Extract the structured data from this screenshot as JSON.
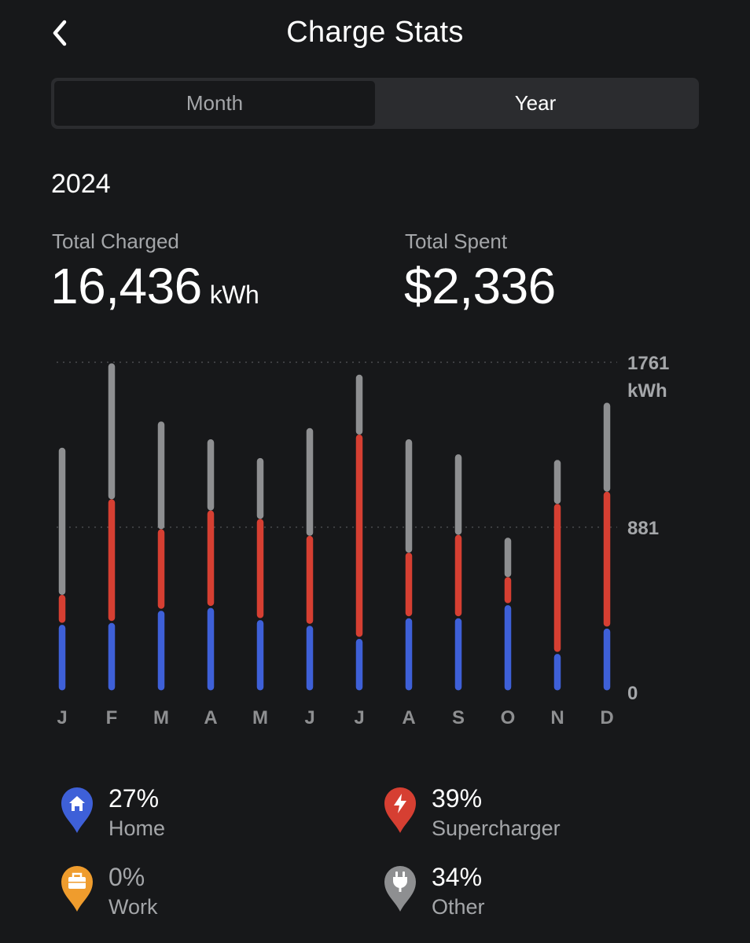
{
  "header": {
    "title": "Charge Stats",
    "back_icon": "chevron-left-icon"
  },
  "tabs": [
    {
      "label": "Month",
      "selected": false
    },
    {
      "label": "Year",
      "selected": true
    }
  ],
  "period": "2024",
  "stats": {
    "charged_label": "Total Charged",
    "charged_value": "16,436",
    "charged_unit": "kWh",
    "spent_label": "Total Spent",
    "spent_value": "$2,336"
  },
  "chart_data": {
    "type": "bar",
    "stacked": true,
    "categories": [
      "J",
      "F",
      "M",
      "A",
      "M",
      "J",
      "J",
      "A",
      "S",
      "O",
      "N",
      "D"
    ],
    "series": [
      {
        "name": "Home",
        "color": "#3e60d8",
        "values": [
          360,
          370,
          435,
          450,
          385,
          355,
          285,
          395,
          395,
          465,
          205,
          340
        ]
      },
      {
        "name": "Supercharger",
        "color": "#d63f32",
        "values": [
          160,
          660,
          435,
          520,
          540,
          480,
          1090,
          350,
          445,
          150,
          800,
          730
        ]
      },
      {
        "name": "Other",
        "color": "#8e8f91",
        "values": [
          785,
          725,
          575,
          380,
          325,
          575,
          320,
          605,
          430,
          210,
          235,
          475
        ]
      }
    ],
    "ylim": [
      0,
      1761
    ],
    "yticks": [
      {
        "value": 1761,
        "label": "1761",
        "unit": "kWh"
      },
      {
        "value": 881,
        "label": "881",
        "unit": ""
      },
      {
        "value": 0,
        "label": "0",
        "unit": ""
      }
    ],
    "grid": true
  },
  "legend": [
    {
      "key": "home",
      "percent": "27%",
      "label": "Home",
      "color": "#3e60d8",
      "icon": "home-pin-icon"
    },
    {
      "key": "supercharger",
      "percent": "39%",
      "label": "Supercharger",
      "color": "#d63f32",
      "icon": "bolt-pin-icon"
    },
    {
      "key": "work",
      "percent": "0%",
      "label": "Work",
      "color": "#ef9c2d",
      "icon": "briefcase-pin-icon"
    },
    {
      "key": "other",
      "percent": "34%",
      "label": "Other",
      "color": "#8e8f91",
      "icon": "plug-pin-icon"
    }
  ]
}
